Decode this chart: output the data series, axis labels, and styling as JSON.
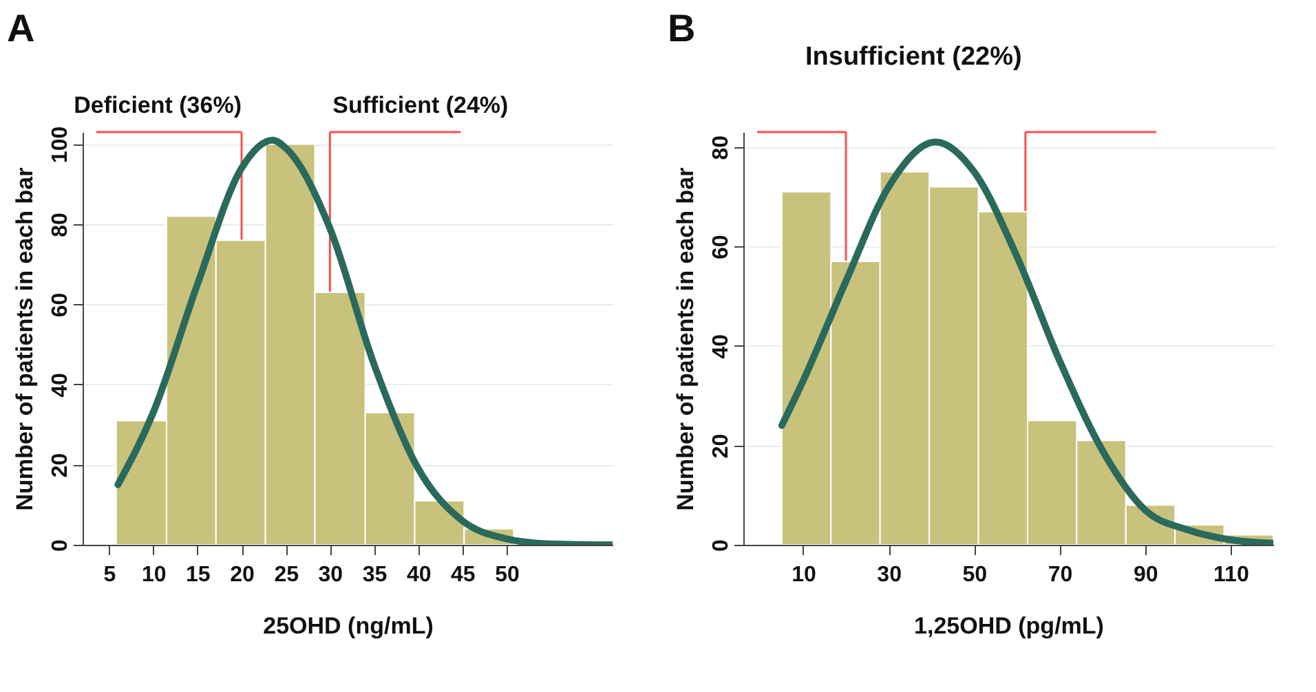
{
  "chart_data": [
    {
      "type": "histogram",
      "title": "A",
      "xlabel": "25OHD (ng/mL)",
      "ylabel": "Number of patients in each bar",
      "color": "#c9c27c",
      "bins": [
        5.8,
        11.5,
        17.1,
        22.7,
        28.3,
        34.0,
        39.6,
        45.2,
        50.8
      ],
      "values": [
        31,
        82,
        76,
        100,
        63,
        33,
        11,
        4
      ],
      "xlim": [
        2,
        62
      ],
      "xticks": [
        5,
        10,
        15,
        20,
        25,
        30,
        35,
        40,
        45,
        50
      ],
      "ylim": [
        0,
        103
      ],
      "yticks": [
        0,
        20,
        40,
        60,
        80,
        100
      ],
      "grid": "y",
      "ref_lines": [
        {
          "axis": "x",
          "value": 20,
          "label": "Deficient (36%)",
          "color": "#ff4d4d"
        },
        {
          "axis": "x",
          "value": 30,
          "label": "Sufficient (24%)",
          "color": "#ff4d4d"
        }
      ],
      "series": [
        {
          "type": "line",
          "color": "#2a6a5c",
          "x": [
            6,
            10,
            15,
            20,
            23.5,
            25,
            30,
            35,
            40,
            45,
            50,
            55,
            60,
            62
          ],
          "values": [
            15,
            33,
            65,
            94,
            101,
            99,
            79,
            45,
            19,
            6,
            1.5,
            0.2,
            0,
            0
          ]
        }
      ]
    },
    {
      "type": "histogram",
      "title": "B",
      "xlabel": "1,25OHD (pg/mL)",
      "ylabel": "Number of patients in each bar",
      "color": "#c9c27c",
      "bins": [
        5,
        16.5,
        28,
        39.5,
        51,
        62.5,
        74,
        85.5,
        97,
        108.5,
        120
      ],
      "values": [
        71,
        57,
        75,
        72,
        67,
        25,
        21,
        8,
        4,
        2
      ],
      "xlim": [
        -4,
        120
      ],
      "xticks": [
        10,
        30,
        50,
        70,
        90,
        110
      ],
      "ylim": [
        0,
        83
      ],
      "yticks": [
        0,
        20,
        40,
        60,
        80
      ],
      "grid": "y",
      "ref_lines": [
        {
          "axis": "x",
          "value": 20,
          "color": "#ff4d4d"
        },
        {
          "axis": "x",
          "value": 62,
          "color": "#ff4d4d"
        }
      ],
      "annotations": [
        "Insufficient (22%)"
      ],
      "series": [
        {
          "type": "line",
          "color": "#2a6a5c",
          "x": [
            5,
            10,
            20,
            30,
            41,
            50,
            60,
            70,
            80,
            90,
            100,
            110,
            120
          ],
          "values": [
            24,
            33,
            53,
            72,
            81,
            75,
            58,
            37,
            19,
            7,
            3,
            1,
            0.3
          ]
        }
      ]
    }
  ]
}
